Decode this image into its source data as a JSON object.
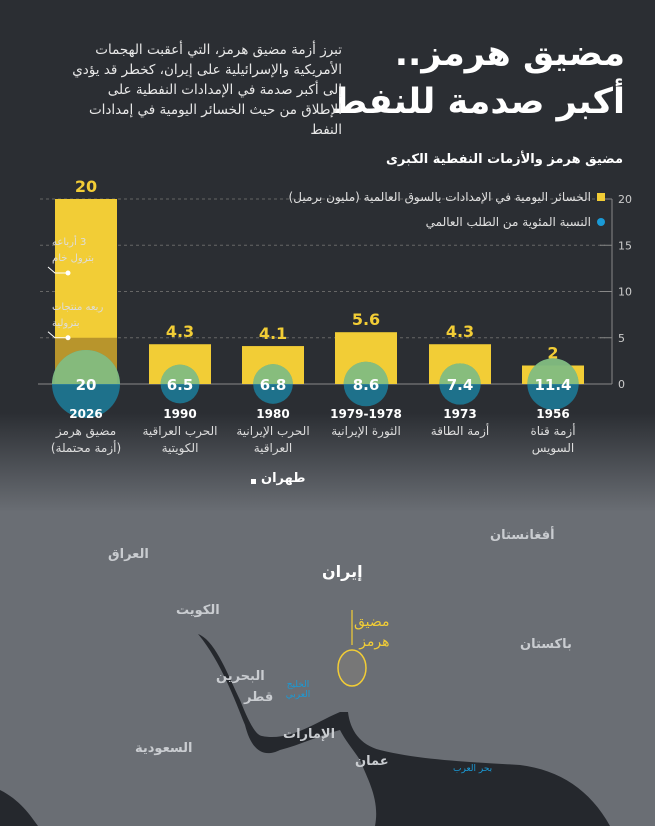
{
  "title_line1": "مضيق هرمز..",
  "title_line2": "أكبر صدمة للنفط",
  "intro": "تبرز أزمة مضيق هرمز، التي أعقبت الهجمات الأمريكية والإسرائيلية على إيران، كخطر قد يؤدي إلى أكبر صدمة في الإمدادات النفطية على الإطلاق من حيث الخسائر اليومية في إمدادات النفط",
  "chart_data": {
    "type": "bar",
    "title": "مضيق هرمز والأزمات النفطية الكبرى",
    "categories": [
      {
        "year": "2026",
        "name": "مضيق هرمز",
        "name2": "(أزمة محتملة)"
      },
      {
        "year": "1990",
        "name": "الحرب العراقية",
        "name2": "الكويتية"
      },
      {
        "year": "1980",
        "name": "الحرب الإيرانية",
        "name2": "العراقية"
      },
      {
        "year": "1979-1978",
        "name": "الثورة الإيرانية",
        "name2": ""
      },
      {
        "year": "1973",
        "name": "أزمة الطاقة",
        "name2": ""
      },
      {
        "year": "1956",
        "name": "أزمة قناة",
        "name2": "السويس"
      }
    ],
    "series": [
      {
        "name": "الخسائر اليومية في الإمدادات بالسوق العالمية (مليون برميل)",
        "values": [
          20,
          4.3,
          4.1,
          5.6,
          4.3,
          2
        ],
        "color": "#f2cd36"
      },
      {
        "name": "النسبة المئوية من الطلب العالمي",
        "values": [
          20,
          6.5,
          6.8,
          8.6,
          7.4,
          11.4
        ],
        "color": "#1a9ad6"
      }
    ],
    "ylim": [
      0,
      20
    ],
    "yticks": [
      0,
      5,
      10,
      15,
      20
    ],
    "grid": true,
    "legend": "top-right",
    "annotations": [
      {
        "text1": "3 أرباعه",
        "text2": "بترول خام",
        "y": 12
      },
      {
        "text1": "ربعه منتجات",
        "text2": "بترولية",
        "y": 5
      }
    ],
    "split_value": 5
  },
  "map": {
    "labels": {
      "tehran": "طهران",
      "iran": "إيران",
      "iraq": "العراق",
      "kuwait": "الكويت",
      "bahrain": "البحرين",
      "qatar": "قطر",
      "uae": "الإمارات",
      "saudi": "السعودية",
      "oman": "عمان",
      "afghanistan": "أفغانستان",
      "pakistan": "باكستان",
      "gulf": "الخليج العربي",
      "arabian_sea": "بحر العرب",
      "hormuz1": "مضيق",
      "hormuz2": "هرمز"
    }
  }
}
